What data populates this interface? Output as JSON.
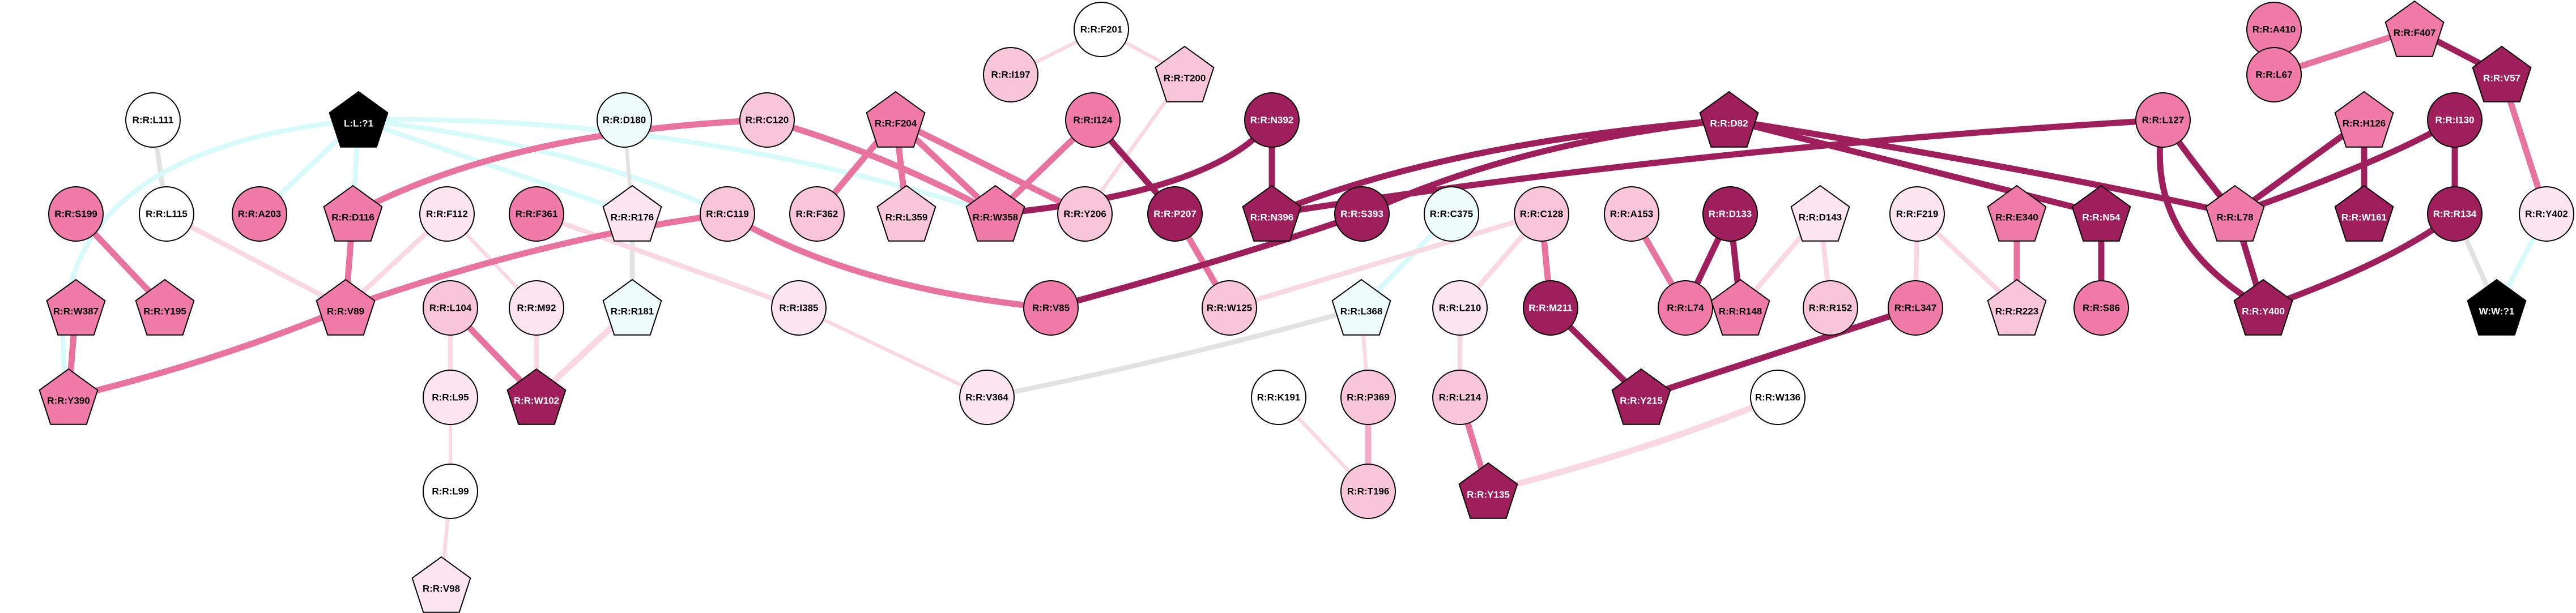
{
  "colors": {
    "c0": "#ffffff",
    "c1": "#fde5ef",
    "c2": "#f9c6d9",
    "c3": "#f07aa8",
    "c4": "#9e1f5c",
    "black": "#000000",
    "cyan": "#effcfc",
    "edge_pale": "#f9d7e3",
    "edge_mid": "#f2aac6",
    "edge_strong": "#e9739f",
    "edge_dark": "#9e1f5c",
    "edge_cyan": "#d7fafa",
    "edge_gray": "#e2e2e2"
  },
  "nodes": [
    {
      "id": "n_f201",
      "label": "R:R:F201",
      "shape": "circle",
      "fill": "c0"
    },
    {
      "id": "n_i197",
      "label": "R:R:I197",
      "shape": "circle",
      "fill": "c2"
    },
    {
      "id": "n_t200",
      "label": "R:R:T200",
      "shape": "pentagon",
      "fill": "c2"
    },
    {
      "id": "n_a410",
      "label": "R:R:A410",
      "shape": "circle",
      "fill": "c3"
    },
    {
      "id": "n_f407",
      "label": "R:R:F407",
      "shape": "pentagon",
      "fill": "c3"
    },
    {
      "id": "n_l67",
      "label": "R:R:L67",
      "shape": "circle",
      "fill": "c3"
    },
    {
      "id": "n_v57",
      "label": "R:R:V57",
      "shape": "pentagon",
      "fill": "c4"
    },
    {
      "id": "n_l111",
      "label": "R:R:L111",
      "shape": "circle",
      "fill": "c0"
    },
    {
      "id": "n_lig",
      "label": "L:L:?1",
      "shape": "pentagon",
      "fill": "black"
    },
    {
      "id": "n_d180",
      "label": "R:R:D180",
      "shape": "circle",
      "fill": "cyan"
    },
    {
      "id": "n_c120",
      "label": "R:R:C120",
      "shape": "circle",
      "fill": "c2"
    },
    {
      "id": "n_f204",
      "label": "R:R:F204",
      "shape": "pentagon",
      "fill": "c3"
    },
    {
      "id": "n_i124",
      "label": "R:R:I124",
      "shape": "circle",
      "fill": "c3"
    },
    {
      "id": "n_n392",
      "label": "R:R:N392",
      "shape": "circle",
      "fill": "c4"
    },
    {
      "id": "n_d82",
      "label": "R:R:D82",
      "shape": "pentagon",
      "fill": "c4"
    },
    {
      "id": "n_l127",
      "label": "R:R:L127",
      "shape": "circle",
      "fill": "c3"
    },
    {
      "id": "n_h126",
      "label": "R:R:H126",
      "shape": "pentagon",
      "fill": "c3"
    },
    {
      "id": "n_i130",
      "label": "R:R:I130",
      "shape": "circle",
      "fill": "c4"
    },
    {
      "id": "n_s199",
      "label": "R:R:S199",
      "shape": "circle",
      "fill": "c3"
    },
    {
      "id": "n_l115",
      "label": "R:R:L115",
      "shape": "circle",
      "fill": "c0"
    },
    {
      "id": "n_a203",
      "label": "R:R:A203",
      "shape": "circle",
      "fill": "c3"
    },
    {
      "id": "n_d116",
      "label": "R:R:D116",
      "shape": "pentagon",
      "fill": "c3"
    },
    {
      "id": "n_f112",
      "label": "R:R:F112",
      "shape": "circle",
      "fill": "c1"
    },
    {
      "id": "n_f361",
      "label": "R:R:F361",
      "shape": "circle",
      "fill": "c3"
    },
    {
      "id": "n_r176",
      "label": "R:R:R176",
      "shape": "pentagon",
      "fill": "c1"
    },
    {
      "id": "n_c119",
      "label": "R:R:C119",
      "shape": "circle",
      "fill": "c2"
    },
    {
      "id": "n_f362",
      "label": "R:R:F362",
      "shape": "circle",
      "fill": "c2"
    },
    {
      "id": "n_l359",
      "label": "R:R:L359",
      "shape": "pentagon",
      "fill": "c2"
    },
    {
      "id": "n_w358",
      "label": "R:R:W358",
      "shape": "pentagon",
      "fill": "c3"
    },
    {
      "id": "n_y206",
      "label": "R:R:Y206",
      "shape": "circle",
      "fill": "c2"
    },
    {
      "id": "n_p207",
      "label": "R:R:P207",
      "shape": "circle",
      "fill": "c4"
    },
    {
      "id": "n_n396",
      "label": "R:R:N396",
      "shape": "pentagon",
      "fill": "c4"
    },
    {
      "id": "n_s393",
      "label": "R:R:S393",
      "shape": "circle",
      "fill": "c4"
    },
    {
      "id": "n_c375",
      "label": "R:R:C375",
      "shape": "circle",
      "fill": "cyan"
    },
    {
      "id": "n_c128",
      "label": "R:R:C128",
      "shape": "circle",
      "fill": "c2"
    },
    {
      "id": "n_a153",
      "label": "R:R:A153",
      "shape": "circle",
      "fill": "c2"
    },
    {
      "id": "n_d133",
      "label": "R:R:D133",
      "shape": "circle",
      "fill": "c4"
    },
    {
      "id": "n_d143",
      "label": "R:R:D143",
      "shape": "pentagon",
      "fill": "c1"
    },
    {
      "id": "n_f219",
      "label": "R:R:F219",
      "shape": "circle",
      "fill": "c1"
    },
    {
      "id": "n_e340",
      "label": "R:R:E340",
      "shape": "pentagon",
      "fill": "c3"
    },
    {
      "id": "n_n54",
      "label": "R:R:N54",
      "shape": "pentagon",
      "fill": "c4"
    },
    {
      "id": "n_l78",
      "label": "R:R:L78",
      "shape": "pentagon",
      "fill": "c3"
    },
    {
      "id": "n_w161",
      "label": "R:R:W161",
      "shape": "pentagon",
      "fill": "c4"
    },
    {
      "id": "n_r134",
      "label": "R:R:R134",
      "shape": "circle",
      "fill": "c4"
    },
    {
      "id": "n_y402",
      "label": "R:R:Y402",
      "shape": "circle",
      "fill": "c1"
    },
    {
      "id": "n_w387",
      "label": "R:R:W387",
      "shape": "pentagon",
      "fill": "c3"
    },
    {
      "id": "n_y195",
      "label": "R:R:Y195",
      "shape": "pentagon",
      "fill": "c3"
    },
    {
      "id": "n_v89",
      "label": "R:R:V89",
      "shape": "pentagon",
      "fill": "c3"
    },
    {
      "id": "n_i385",
      "label": "R:R:I385",
      "shape": "circle",
      "fill": "c1"
    },
    {
      "id": "n_r181",
      "label": "R:R:R181",
      "shape": "pentagon",
      "fill": "cyan"
    },
    {
      "id": "n_l104",
      "label": "R:R:L104",
      "shape": "circle",
      "fill": "c2"
    },
    {
      "id": "n_m92",
      "label": "R:R:M92",
      "shape": "circle",
      "fill": "c1"
    },
    {
      "id": "n_v85",
      "label": "R:R:V85",
      "shape": "circle",
      "fill": "c3"
    },
    {
      "id": "n_w125",
      "label": "R:R:W125",
      "shape": "circle",
      "fill": "c2"
    },
    {
      "id": "n_l368",
      "label": "R:R:L368",
      "shape": "pentagon",
      "fill": "cyan"
    },
    {
      "id": "n_l210",
      "label": "R:R:L210",
      "shape": "circle",
      "fill": "c1"
    },
    {
      "id": "n_m211",
      "label": "R:R:M211",
      "shape": "circle",
      "fill": "c4"
    },
    {
      "id": "n_l74",
      "label": "R:R:L74",
      "shape": "circle",
      "fill": "c3"
    },
    {
      "id": "n_r148",
      "label": "R:R:R148",
      "shape": "pentagon",
      "fill": "c3"
    },
    {
      "id": "n_r152",
      "label": "R:R:R152",
      "shape": "circle",
      "fill": "c2"
    },
    {
      "id": "n_l347",
      "label": "R:R:L347",
      "shape": "circle",
      "fill": "c3"
    },
    {
      "id": "n_r223",
      "label": "R:R:R223",
      "shape": "pentagon",
      "fill": "c2"
    },
    {
      "id": "n_s86",
      "label": "R:R:S86",
      "shape": "circle",
      "fill": "c3"
    },
    {
      "id": "n_y400",
      "label": "R:R:Y400",
      "shape": "pentagon",
      "fill": "c4"
    },
    {
      "id": "n_w71",
      "label": "W:W:?1",
      "shape": "pentagon",
      "fill": "black"
    },
    {
      "id": "n_y390",
      "label": "R:R:Y390",
      "shape": "pentagon",
      "fill": "c3"
    },
    {
      "id": "n_l95",
      "label": "R:R:L95",
      "shape": "circle",
      "fill": "c1"
    },
    {
      "id": "n_w102",
      "label": "R:R:W102",
      "shape": "pentagon",
      "fill": "c4"
    },
    {
      "id": "n_v364",
      "label": "R:R:V364",
      "shape": "circle",
      "fill": "c1"
    },
    {
      "id": "n_k191",
      "label": "R:R:K191",
      "shape": "circle",
      "fill": "c0"
    },
    {
      "id": "n_p369",
      "label": "R:R:P369",
      "shape": "circle",
      "fill": "c2"
    },
    {
      "id": "n_l214",
      "label": "R:R:L214",
      "shape": "circle",
      "fill": "c2"
    },
    {
      "id": "n_y215",
      "label": "R:R:Y215",
      "shape": "pentagon",
      "fill": "c4"
    },
    {
      "id": "n_w136",
      "label": "R:R:W136",
      "shape": "circle",
      "fill": "c0"
    },
    {
      "id": "n_l99",
      "label": "R:R:L99",
      "shape": "circle",
      "fill": "c0"
    },
    {
      "id": "n_t196",
      "label": "R:R:T196",
      "shape": "circle",
      "fill": "c2"
    },
    {
      "id": "n_y135",
      "label": "R:R:Y135",
      "shape": "pentagon",
      "fill": "c4"
    },
    {
      "id": "n_v98",
      "label": "R:R:V98",
      "shape": "pentagon",
      "fill": "c1"
    }
  ],
  "edges": [
    {
      "source": "n_f201",
      "target": "n_i197",
      "color": "edge_pale",
      "weight": 1
    },
    {
      "source": "n_f201",
      "target": "n_t200",
      "color": "edge_pale",
      "weight": 1
    },
    {
      "source": "n_t200",
      "target": "n_y206",
      "color": "edge_pale",
      "weight": 1
    },
    {
      "source": "n_a410",
      "target": "n_l67",
      "color": "edge_strong",
      "weight": 3
    },
    {
      "source": "n_f407",
      "target": "n_l67",
      "color": "edge_strong",
      "weight": 3
    },
    {
      "source": "n_f407",
      "target": "n_v57",
      "color": "edge_dark",
      "weight": 3
    },
    {
      "source": "n_v57",
      "target": "n_y402",
      "color": "edge_strong",
      "weight": 3
    },
    {
      "source": "n_y402",
      "target": "n_w71",
      "color": "edge_cyan",
      "weight": 2
    },
    {
      "source": "n_l111",
      "target": "n_l115",
      "color": "edge_gray",
      "weight": 2
    },
    {
      "source": "n_l115",
      "target": "n_v89",
      "color": "edge_pale",
      "weight": 2
    },
    {
      "source": "n_lig",
      "target": "n_a203",
      "color": "edge_cyan",
      "weight": 2
    },
    {
      "source": "n_lig",
      "target": "n_d116",
      "color": "edge_cyan",
      "weight": 2
    },
    {
      "source": "n_lig",
      "target": "n_r176",
      "color": "edge_cyan",
      "weight": 2
    },
    {
      "source": "n_lig",
      "target": "n_w358",
      "color": "edge_cyan",
      "weight": 2
    },
    {
      "source": "n_lig",
      "target": "n_y390",
      "color": "edge_cyan",
      "weight": 2
    },
    {
      "source": "n_lig",
      "target": "n_c119",
      "color": "edge_cyan",
      "weight": 2
    },
    {
      "source": "n_d180",
      "target": "n_r176",
      "color": "edge_gray",
      "weight": 1
    },
    {
      "source": "n_r176",
      "target": "n_r181",
      "color": "edge_gray",
      "weight": 2
    },
    {
      "source": "n_r181",
      "target": "n_w102",
      "color": "edge_pale",
      "weight": 3
    },
    {
      "source": "n_c120",
      "target": "n_d116",
      "color": "edge_strong",
      "weight": 3
    },
    {
      "source": "n_c120",
      "target": "n_w358",
      "color": "edge_strong",
      "weight": 3
    },
    {
      "source": "n_f204",
      "target": "n_f362",
      "color": "edge_strong",
      "weight": 3
    },
    {
      "source": "n_f204",
      "target": "n_l359",
      "color": "edge_strong",
      "weight": 3
    },
    {
      "source": "n_f204",
      "target": "n_w358",
      "color": "edge_strong",
      "weight": 3
    },
    {
      "source": "n_f204",
      "target": "n_y206",
      "color": "edge_strong",
      "weight": 3
    },
    {
      "source": "n_i124",
      "target": "n_w358",
      "color": "edge_strong",
      "weight": 3
    },
    {
      "source": "n_i124",
      "target": "n_p207",
      "color": "edge_dark",
      "weight": 3
    },
    {
      "source": "n_n392",
      "target": "n_w358",
      "color": "edge_dark",
      "weight": 3
    },
    {
      "source": "n_n392",
      "target": "n_n396",
      "color": "edge_dark",
      "weight": 3
    },
    {
      "source": "n_p207",
      "target": "n_w125",
      "color": "edge_strong",
      "weight": 3
    },
    {
      "source": "n_d82",
      "target": "n_n396",
      "color": "edge_dark",
      "weight": 3
    },
    {
      "source": "n_d82",
      "target": "n_s393",
      "color": "edge_dark",
      "weight": 3
    },
    {
      "source": "n_d82",
      "target": "n_n54",
      "color": "edge_dark",
      "weight": 3
    },
    {
      "source": "n_d82",
      "target": "n_l78",
      "color": "edge_dark",
      "weight": 3
    },
    {
      "source": "n_l127",
      "target": "n_n396",
      "color": "edge_dark",
      "weight": 3
    },
    {
      "source": "n_l127",
      "target": "n_l78",
      "color": "edge_dark",
      "weight": 3
    },
    {
      "source": "n_l127",
      "target": "n_y400",
      "color": "edge_dark",
      "weight": 3
    },
    {
      "source": "n_h126",
      "target": "n_l78",
      "color": "edge_dark",
      "weight": 3
    },
    {
      "source": "n_h126",
      "target": "n_w161",
      "color": "edge_dark",
      "weight": 3
    },
    {
      "source": "n_i130",
      "target": "n_l78",
      "color": "edge_dark",
      "weight": 3
    },
    {
      "source": "n_i130",
      "target": "n_r134",
      "color": "edge_dark",
      "weight": 3
    },
    {
      "source": "n_r134",
      "target": "n_y400",
      "color": "edge_dark",
      "weight": 3
    },
    {
      "source": "n_r134",
      "target": "n_w71",
      "color": "edge_gray",
      "weight": 2
    },
    {
      "source": "n_l78",
      "target": "n_y400",
      "color": "edge_dark",
      "weight": 3
    },
    {
      "source": "n_n54",
      "target": "n_s86",
      "color": "edge_dark",
      "weight": 3
    },
    {
      "source": "n_s199",
      "target": "n_y195",
      "color": "edge_strong",
      "weight": 3
    },
    {
      "source": "n_d116",
      "target": "n_v89",
      "color": "edge_strong",
      "weight": 3
    },
    {
      "source": "n_f112",
      "target": "n_v89",
      "color": "edge_pale",
      "weight": 2
    },
    {
      "source": "n_f112",
      "target": "n_m92",
      "color": "edge_pale",
      "weight": 1
    },
    {
      "source": "n_f361",
      "target": "n_i385",
      "color": "edge_pale",
      "weight": 2
    },
    {
      "source": "n_c119",
      "target": "n_v89",
      "color": "edge_strong",
      "weight": 3
    },
    {
      "source": "n_c119",
      "target": "n_v85",
      "color": "edge_strong",
      "weight": 3
    },
    {
      "source": "n_v89",
      "target": "n_y390",
      "color": "edge_strong",
      "weight": 3
    },
    {
      "source": "n_w387",
      "target": "n_y390",
      "color": "edge_strong",
      "weight": 3
    },
    {
      "source": "n_l104",
      "target": "n_w102",
      "color": "edge_strong",
      "weight": 3
    },
    {
      "source": "n_l104",
      "target": "n_l95",
      "color": "edge_pale",
      "weight": 2
    },
    {
      "source": "n_m92",
      "target": "n_w102",
      "color": "edge_pale",
      "weight": 2
    },
    {
      "source": "n_l95",
      "target": "n_l99",
      "color": "edge_pale",
      "weight": 1
    },
    {
      "source": "n_l99",
      "target": "n_v98",
      "color": "edge_pale",
      "weight": 1
    },
    {
      "source": "n_i385",
      "target": "n_v364",
      "color": "edge_pale",
      "weight": 1
    },
    {
      "source": "n_s393",
      "target": "n_v85",
      "color": "edge_dark",
      "weight": 3
    },
    {
      "source": "n_c375",
      "target": "n_l368",
      "color": "edge_cyan",
      "weight": 2
    },
    {
      "source": "n_l368",
      "target": "n_v364",
      "color": "edge_gray",
      "weight": 2
    },
    {
      "source": "n_l368",
      "target": "n_p369",
      "color": "edge_pale",
      "weight": 1
    },
    {
      "source": "n_c128",
      "target": "n_w125",
      "color": "edge_pale",
      "weight": 2
    },
    {
      "source": "n_c128",
      "target": "n_l210",
      "color": "edge_pale",
      "weight": 2
    },
    {
      "source": "n_c128",
      "target": "n_m211",
      "color": "edge_strong",
      "weight": 3
    },
    {
      "source": "n_l210",
      "target": "n_l214",
      "color": "edge_pale",
      "weight": 2
    },
    {
      "source": "n_l214",
      "target": "n_y135",
      "color": "edge_strong",
      "weight": 3
    },
    {
      "source": "n_m211",
      "target": "n_y215",
      "color": "edge_dark",
      "weight": 3
    },
    {
      "source": "n_k191",
      "target": "n_t196",
      "color": "edge_pale",
      "weight": 1
    },
    {
      "source": "n_p369",
      "target": "n_t196",
      "color": "edge_mid",
      "weight": 3
    },
    {
      "source": "n_a153",
      "target": "n_l74",
      "color": "edge_strong",
      "weight": 3
    },
    {
      "source": "n_d133",
      "target": "n_l74",
      "color": "edge_dark",
      "weight": 3
    },
    {
      "source": "n_d133",
      "target": "n_r148",
      "color": "edge_dark",
      "weight": 3
    },
    {
      "source": "n_d143",
      "target": "n_r148",
      "color": "edge_pale",
      "weight": 2
    },
    {
      "source": "n_d143",
      "target": "n_r152",
      "color": "edge_pale",
      "weight": 2
    },
    {
      "source": "n_f219",
      "target": "n_l347",
      "color": "edge_pale",
      "weight": 2
    },
    {
      "source": "n_f219",
      "target": "n_r223",
      "color": "edge_pale",
      "weight": 2
    },
    {
      "source": "n_e340",
      "target": "n_r223",
      "color": "edge_strong",
      "weight": 3
    },
    {
      "source": "n_l347",
      "target": "n_y215",
      "color": "edge_dark",
      "weight": 3
    },
    {
      "source": "n_w136",
      "target": "n_y135",
      "color": "edge_pale",
      "weight": 3
    }
  ]
}
